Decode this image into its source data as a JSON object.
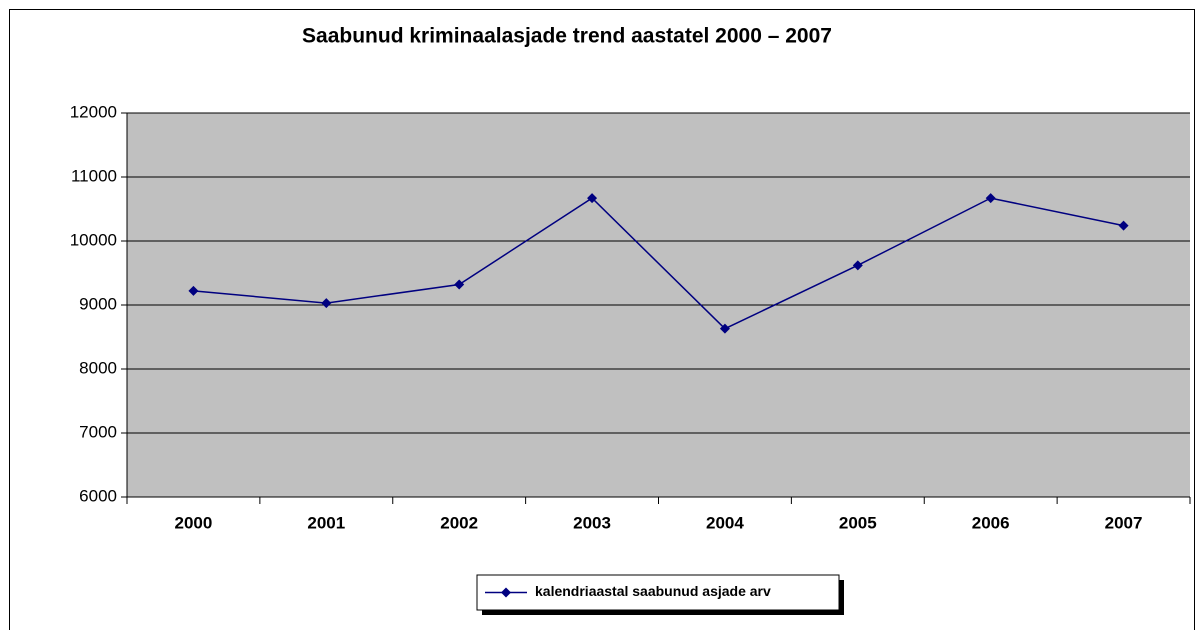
{
  "chart_data": {
    "type": "line",
    "title": "Saabunud kriminaalasjade trend aastatel 2000 – 2007",
    "categories": [
      "2000",
      "2001",
      "2002",
      "2003",
      "2004",
      "2005",
      "2006",
      "2007"
    ],
    "series": [
      {
        "name": "kalendriaastal saabunud asjade arv",
        "color": "#000080",
        "values": [
          9220,
          9030,
          9320,
          10670,
          8630,
          9620,
          10670,
          10240
        ]
      }
    ],
    "ylim": [
      6000,
      12000
    ],
    "yticks": [
      6000,
      7000,
      8000,
      9000,
      10000,
      11000,
      12000
    ],
    "grid": true,
    "legend": "bottom",
    "plot_background": "#c0c0c0"
  }
}
